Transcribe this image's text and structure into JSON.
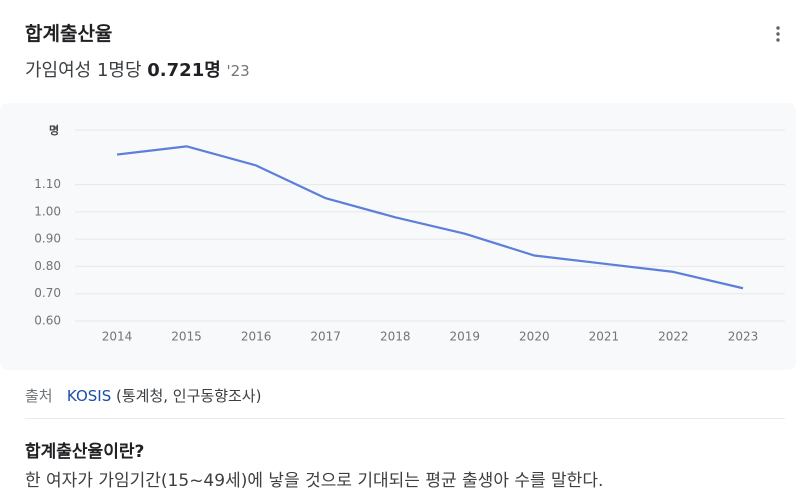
{
  "header": {
    "title": "합계출산율",
    "subtitle": "가임여성 1명당",
    "value": "0.721명",
    "year": "'23"
  },
  "chart_data": {
    "type": "line",
    "unit": "명",
    "categories": [
      "2014",
      "2015",
      "2016",
      "2017",
      "2018",
      "2019",
      "2020",
      "2021",
      "2022",
      "2023"
    ],
    "series": [
      {
        "name": "합계출산율",
        "color": "#5b7fdb",
        "values": [
          1.21,
          1.24,
          1.17,
          1.05,
          0.98,
          0.92,
          0.84,
          0.81,
          0.78,
          0.72
        ]
      }
    ],
    "ylim": [
      0.6,
      1.3
    ],
    "yticks": [
      {
        "value": 0.6,
        "label": "0.60"
      },
      {
        "value": 0.7,
        "label": "0.70"
      },
      {
        "value": 0.8,
        "label": "0.80"
      },
      {
        "value": 0.9,
        "label": "0.90"
      },
      {
        "value": 1.0,
        "label": "1.00"
      },
      {
        "value": 1.1,
        "label": "1.10"
      }
    ],
    "grid": true
  },
  "source": {
    "label": "출처",
    "link": "KOSIS",
    "detail": "(통계청, 인구동향조사)"
  },
  "definition": {
    "title": "합계출산율이란?",
    "text": "한 여자가 가임기간(15~49세)에 낳을 것으로 기대되는 평균 출생아 수를 말한다."
  }
}
